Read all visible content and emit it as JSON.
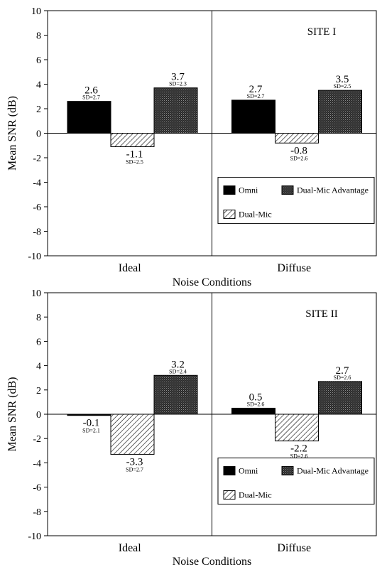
{
  "chart_data": [
    {
      "type": "bar",
      "panel_label": "SITE I",
      "ylabel": "Mean SNR (dB)",
      "xlabel": "Noise Conditions",
      "categories": [
        "Ideal",
        "Diffuse"
      ],
      "ylim": [
        -10,
        10
      ],
      "yticks": [
        "10",
        "8",
        "6",
        "4",
        "2",
        "0",
        "-2",
        "-4",
        "-6",
        "-8",
        "-10"
      ],
      "legend_position": "lower-right",
      "series": [
        {
          "name": "Omni",
          "values": [
            2.6,
            2.7
          ],
          "labels": [
            "2.6",
            "2.7"
          ],
          "sd": [
            "SD=2.7",
            "SD=2.7"
          ],
          "pattern": "solid-black"
        },
        {
          "name": "Dual-Mic",
          "values": [
            -1.1,
            -0.8
          ],
          "labels": [
            "-1.1",
            "-0.8"
          ],
          "sd": [
            "SD=2.5",
            "SD=2.6"
          ],
          "pattern": "diagonal-hatch"
        },
        {
          "name": "Dual-Mic Advantage",
          "values": [
            3.7,
            3.5
          ],
          "labels": [
            "3.7",
            "3.5"
          ],
          "sd": [
            "SD=2.3",
            "SD=2.5"
          ],
          "pattern": "dark-stipple"
        }
      ]
    },
    {
      "type": "bar",
      "panel_label": "SITE II",
      "ylabel": "Mean SNR (dB)",
      "xlabel": "Noise Conditions",
      "categories": [
        "Ideal",
        "Diffuse"
      ],
      "ylim": [
        -10,
        10
      ],
      "yticks": [
        "10",
        "8",
        "6",
        "4",
        "2",
        "0",
        "-2",
        "-4",
        "-6",
        "-8",
        "-10"
      ],
      "legend_position": "lower-right",
      "series": [
        {
          "name": "Omni",
          "values": [
            -0.1,
            0.5
          ],
          "labels": [
            "-0.1",
            "0.5"
          ],
          "sd": [
            "SD=2.1",
            "SD=2.6"
          ],
          "pattern": "solid-black"
        },
        {
          "name": "Dual-Mic",
          "values": [
            -3.3,
            -2.2
          ],
          "labels": [
            "-3.3",
            "-2.2"
          ],
          "sd": [
            "SD=2.7",
            "SD=2.6"
          ],
          "pattern": "diagonal-hatch"
        },
        {
          "name": "Dual-Mic Advantage",
          "values": [
            3.2,
            2.7
          ],
          "labels": [
            "3.2",
            "2.7"
          ],
          "sd": [
            "SD=2.4",
            "SD=2.6"
          ],
          "pattern": "dark-stipple"
        }
      ]
    }
  ]
}
